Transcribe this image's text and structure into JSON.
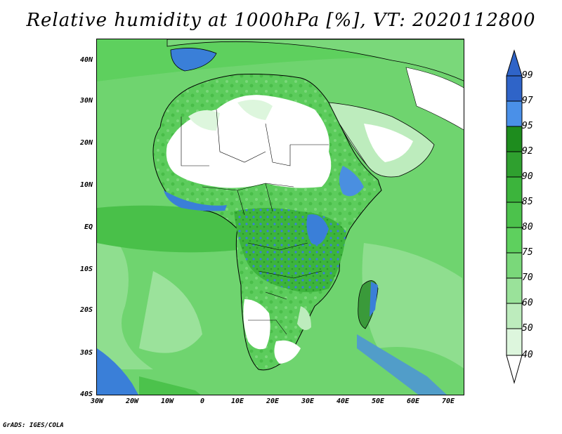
{
  "title": "Relative humidity at 1000hPa [%], VT: 2020112800",
  "credit": "GrADS: IGES/COLA",
  "lat_labels": [
    "40N",
    "30N",
    "20N",
    "10N",
    "EQ",
    "10S",
    "20S",
    "30S",
    "40S"
  ],
  "lon_labels": [
    "30W",
    "20W",
    "10W",
    "0",
    "10E",
    "20E",
    "30E",
    "40E",
    "50E",
    "60E",
    "70E"
  ],
  "colorbar": {
    "levels": [
      "99",
      "97",
      "95",
      "92",
      "90",
      "85",
      "80",
      "75",
      "70",
      "60",
      "50",
      "40"
    ],
    "colors": [
      "#2f64c8",
      "#4a90e8",
      "#1e8c1e",
      "#2fa02f",
      "#3cb43c",
      "#4cc24c",
      "#5ed05e",
      "#7ad87a",
      "#9ae29a",
      "#bdecbd",
      "#ddf6dd",
      "#ffffff"
    ]
  }
}
